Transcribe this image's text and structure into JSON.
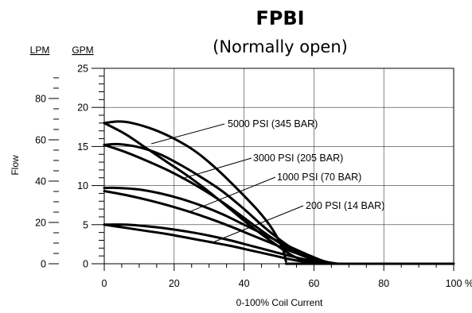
{
  "chart_data": {
    "type": "line",
    "title": "FPBI",
    "subtitle": "(Normally open)",
    "xlabel": "0-100% Coil Current",
    "ylabel": "Flow",
    "x_unit": "%",
    "y_unit_right": "GPM",
    "y_unit_left": "LPM",
    "xlim": [
      0,
      100
    ],
    "ylim": [
      0,
      25
    ],
    "lpm_lim": [
      0,
      94.6
    ],
    "x_ticks": [
      "0",
      "20",
      "40",
      "60",
      "80",
      "100"
    ],
    "y_ticks_gpm": [
      "0",
      "5",
      "10",
      "15",
      "20",
      "25"
    ],
    "y_ticks_lpm": [
      "0",
      "20",
      "40",
      "60",
      "80"
    ],
    "grid": true,
    "series": [
      {
        "name": "5000 PSI (345 BAR)",
        "upper": [
          [
            0,
            18
          ],
          [
            4,
            18.2
          ],
          [
            8,
            18
          ],
          [
            14,
            17.2
          ],
          [
            20,
            16
          ],
          [
            26,
            14.4
          ],
          [
            32,
            12.2
          ],
          [
            38,
            9.6
          ],
          [
            44,
            6.8
          ],
          [
            48,
            4.5
          ],
          [
            51,
            2
          ],
          [
            52,
            0.3
          ]
        ],
        "lower": [
          [
            0,
            18
          ],
          [
            6,
            16.6
          ],
          [
            12,
            14.8
          ],
          [
            18,
            13
          ],
          [
            24,
            11.2
          ],
          [
            30,
            9.2
          ],
          [
            36,
            7
          ],
          [
            42,
            4.8
          ],
          [
            48,
            2.8
          ],
          [
            54,
            1
          ],
          [
            59,
            0.1
          ]
        ]
      },
      {
        "name": "3000 PSI (205 BAR)",
        "upper": [
          [
            0,
            15.2
          ],
          [
            4,
            15.3
          ],
          [
            10,
            14.9
          ],
          [
            16,
            14
          ],
          [
            22,
            12.6
          ],
          [
            28,
            11
          ],
          [
            34,
            9.2
          ],
          [
            40,
            7
          ],
          [
            46,
            4.6
          ],
          [
            52,
            2.5
          ],
          [
            58,
            0.9
          ],
          [
            62,
            0.1
          ]
        ],
        "lower": [
          [
            0,
            15.2
          ],
          [
            6,
            14.3
          ],
          [
            12,
            13.2
          ],
          [
            18,
            12
          ],
          [
            24,
            10.6
          ],
          [
            30,
            9
          ],
          [
            36,
            7.2
          ],
          [
            42,
            5.2
          ],
          [
            48,
            3.3
          ],
          [
            54,
            1.6
          ],
          [
            60,
            0.5
          ],
          [
            65,
            0
          ]
        ]
      },
      {
        "name": "1000 PSI (70 BAR)",
        "upper": [
          [
            0,
            9.7
          ],
          [
            4,
            9.7
          ],
          [
            10,
            9.5
          ],
          [
            16,
            9
          ],
          [
            22,
            8.3
          ],
          [
            28,
            7.4
          ],
          [
            34,
            6.3
          ],
          [
            40,
            5
          ],
          [
            46,
            3.7
          ],
          [
            52,
            2.4
          ],
          [
            58,
            1.2
          ],
          [
            63,
            0.3
          ],
          [
            67,
            0
          ]
        ],
        "lower": [
          [
            0,
            9.3
          ],
          [
            6,
            8.8
          ],
          [
            12,
            8.2
          ],
          [
            18,
            7.5
          ],
          [
            24,
            6.7
          ],
          [
            30,
            5.8
          ],
          [
            36,
            4.8
          ],
          [
            42,
            3.7
          ],
          [
            48,
            2.6
          ],
          [
            54,
            1.5
          ],
          [
            60,
            0.6
          ],
          [
            66,
            0
          ]
        ]
      },
      {
        "name": "200 PSI (14 BAR)",
        "upper": [
          [
            0,
            5
          ],
          [
            6,
            5
          ],
          [
            12,
            4.8
          ],
          [
            18,
            4.5
          ],
          [
            24,
            4.1
          ],
          [
            30,
            3.6
          ],
          [
            36,
            3
          ],
          [
            42,
            2.3
          ],
          [
            48,
            1.6
          ],
          [
            54,
            0.9
          ],
          [
            60,
            0.3
          ],
          [
            64,
            0
          ]
        ],
        "lower": [
          [
            0,
            5
          ],
          [
            6,
            4.6
          ],
          [
            12,
            4.2
          ],
          [
            18,
            3.8
          ],
          [
            24,
            3.3
          ],
          [
            30,
            2.8
          ],
          [
            36,
            2.3
          ],
          [
            42,
            1.7
          ],
          [
            48,
            1.1
          ],
          [
            54,
            0.5
          ],
          [
            60,
            0.1
          ],
          [
            63,
            0
          ]
        ]
      }
    ],
    "floor": [
      [
        52,
        0
      ],
      [
        100,
        0
      ]
    ]
  }
}
